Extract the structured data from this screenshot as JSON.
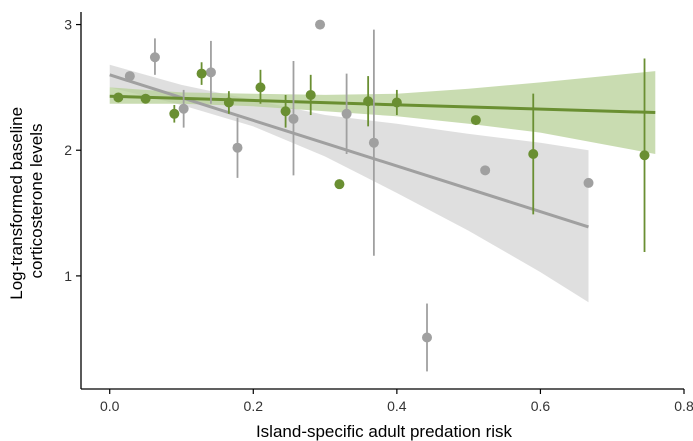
{
  "chart_data": {
    "type": "scatter",
    "xlabel": "Island-specific adult predation risk",
    "ylabel_lines": [
      "Log-transformed baseline",
      "corticosterone levels"
    ],
    "xlim": [
      -0.04,
      0.8
    ],
    "ylim": [
      0.1,
      3.1
    ],
    "xticks": [
      "0.0",
      "0.2",
      "0.4",
      "0.6",
      "0.8"
    ],
    "yticks": [
      "1",
      "2",
      "3"
    ],
    "grid": false,
    "legend": "none",
    "series": [
      {
        "color": "#a0a0a0",
        "band_color": "#d4d4d4",
        "points": [
          {
            "x": 0.028,
            "y": 2.59
          },
          {
            "x": 0.063,
            "y": 2.74,
            "lo": 2.6,
            "hi": 2.89
          },
          {
            "x": 0.103,
            "y": 2.33,
            "lo": 2.18,
            "hi": 2.48
          },
          {
            "x": 0.141,
            "y": 2.62,
            "lo": 2.37,
            "hi": 2.87
          },
          {
            "x": 0.178,
            "y": 2.02,
            "lo": 1.78,
            "hi": 2.26
          },
          {
            "x": 0.256,
            "y": 2.25,
            "lo": 1.8,
            "hi": 2.71
          },
          {
            "x": 0.293,
            "y": 3.0
          },
          {
            "x": 0.33,
            "y": 2.29,
            "lo": 1.97,
            "hi": 2.61
          },
          {
            "x": 0.368,
            "y": 2.06,
            "lo": 1.16,
            "hi": 2.96
          },
          {
            "x": 0.442,
            "y": 0.51,
            "lo": 0.24,
            "hi": 0.78
          },
          {
            "x": 0.523,
            "y": 1.84
          },
          {
            "x": 0.667,
            "y": 1.74
          }
        ],
        "fit": {
          "x": [
            0.0,
            0.667
          ],
          "y": [
            2.6,
            1.39
          ]
        },
        "band": {
          "x": [
            0.0,
            0.1,
            0.2,
            0.3,
            0.4,
            0.5,
            0.6,
            0.667
          ],
          "lo": [
            2.5,
            2.36,
            2.19,
            1.95,
            1.66,
            1.36,
            1.03,
            0.79
          ],
          "hi": [
            2.68,
            2.52,
            2.4,
            2.28,
            2.21,
            2.13,
            2.06,
            2.0
          ]
        }
      },
      {
        "color": "#6a8f32",
        "band_color": "#b7d097",
        "points": [
          {
            "x": 0.012,
            "y": 2.42
          },
          {
            "x": 0.05,
            "y": 2.41
          },
          {
            "x": 0.09,
            "y": 2.29,
            "lo": 2.22,
            "hi": 2.36
          },
          {
            "x": 0.128,
            "y": 2.61,
            "lo": 2.52,
            "hi": 2.7
          },
          {
            "x": 0.166,
            "y": 2.38,
            "lo": 2.29,
            "hi": 2.47
          },
          {
            "x": 0.21,
            "y": 2.5,
            "lo": 2.37,
            "hi": 2.64
          },
          {
            "x": 0.245,
            "y": 2.31,
            "lo": 2.18,
            "hi": 2.44
          },
          {
            "x": 0.28,
            "y": 2.44,
            "lo": 2.28,
            "hi": 2.6
          },
          {
            "x": 0.32,
            "y": 1.73
          },
          {
            "x": 0.36,
            "y": 2.39,
            "lo": 2.19,
            "hi": 2.59
          },
          {
            "x": 0.4,
            "y": 2.38,
            "lo": 2.28,
            "hi": 2.48
          },
          {
            "x": 0.51,
            "y": 2.24
          },
          {
            "x": 0.59,
            "y": 1.97,
            "lo": 1.49,
            "hi": 2.45
          },
          {
            "x": 0.745,
            "y": 1.96,
            "lo": 1.19,
            "hi": 2.73
          }
        ],
        "fit": {
          "x": [
            0.0,
            0.76
          ],
          "y": [
            2.43,
            2.3
          ]
        },
        "band": {
          "x": [
            0.0,
            0.1,
            0.2,
            0.3,
            0.4,
            0.5,
            0.6,
            0.76
          ],
          "lo": [
            2.37,
            2.37,
            2.35,
            2.31,
            2.27,
            2.21,
            2.14,
            1.97
          ],
          "hi": [
            2.5,
            2.46,
            2.45,
            2.44,
            2.45,
            2.49,
            2.54,
            2.63
          ]
        }
      }
    ]
  }
}
